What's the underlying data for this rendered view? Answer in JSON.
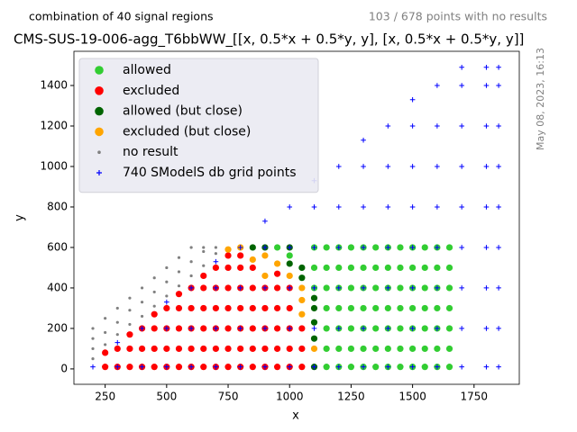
{
  "chart_data": {
    "type": "scatter",
    "title": "CMS-SUS-19-006-agg_T6bbWW_[[x, 0.5*x + 0.5*y, y], [x, 0.5*x + 0.5*y, y]]",
    "subtitle_left": "combination of 40 signal regions",
    "subtitle_right": "103 / 678 points with no results",
    "timestamp": "May 08, 2023, 16:13",
    "x_label": "x",
    "y_label": "y",
    "xlim": [
      123,
      1934
    ],
    "ylim": [
      -76,
      1569
    ],
    "xticks": [
      250,
      500,
      750,
      1000,
      1250,
      1500,
      1750
    ],
    "yticks": [
      0,
      200,
      400,
      600,
      800,
      1000,
      1200,
      1400
    ],
    "legend": "upper left",
    "series": [
      {
        "name": "allowed",
        "color": "#32cd32",
        "marker": "circle",
        "x": [
          950,
          1000,
          1100,
          1100,
          1100,
          1150,
          1150,
          1150,
          1150,
          1150,
          1150,
          1150,
          1200,
          1200,
          1200,
          1200,
          1200,
          1200,
          1200,
          1250,
          1250,
          1250,
          1250,
          1250,
          1250,
          1250,
          1300,
          1300,
          1300,
          1300,
          1300,
          1300,
          1300,
          1350,
          1350,
          1350,
          1350,
          1350,
          1350,
          1350,
          1400,
          1400,
          1400,
          1400,
          1400,
          1400,
          1400,
          1450,
          1450,
          1450,
          1450,
          1450,
          1450,
          1450,
          1500,
          1500,
          1500,
          1500,
          1500,
          1500,
          1500,
          1550,
          1550,
          1550,
          1550,
          1550,
          1550,
          1550,
          1600,
          1600,
          1600,
          1600,
          1600,
          1600,
          1600,
          1650,
          1650,
          1650,
          1650,
          1650,
          1650,
          1650
        ],
        "values": [
          600,
          560,
          400,
          500,
          600,
          10,
          100,
          200,
          300,
          400,
          500,
          600,
          10,
          100,
          200,
          300,
          400,
          500,
          600,
          10,
          100,
          200,
          300,
          400,
          500,
          600,
          10,
          100,
          200,
          300,
          400,
          500,
          600,
          10,
          100,
          200,
          300,
          400,
          500,
          600,
          10,
          100,
          200,
          300,
          400,
          500,
          600,
          10,
          100,
          200,
          300,
          400,
          500,
          600,
          10,
          100,
          200,
          300,
          400,
          500,
          600,
          10,
          100,
          200,
          300,
          400,
          500,
          600,
          10,
          100,
          200,
          300,
          400,
          500,
          600,
          10,
          100,
          200,
          300,
          400,
          500,
          600
        ]
      },
      {
        "name": "excluded",
        "color": "#ff0000",
        "marker": "circle",
        "x": [
          250,
          250,
          300,
          300,
          350,
          350,
          350,
          400,
          400,
          400,
          450,
          450,
          450,
          450,
          500,
          500,
          500,
          500,
          550,
          550,
          550,
          550,
          550,
          600,
          600,
          600,
          600,
          600,
          650,
          650,
          650,
          650,
          650,
          650,
          700,
          700,
          700,
          700,
          700,
          700,
          750,
          750,
          750,
          750,
          750,
          750,
          750,
          800,
          800,
          800,
          800,
          800,
          800,
          800,
          850,
          850,
          850,
          850,
          850,
          850,
          900,
          900,
          900,
          900,
          900,
          950,
          950,
          950,
          950,
          950,
          950,
          1000,
          1000,
          1000,
          1000,
          1000,
          1050,
          1050,
          1050
        ],
        "values": [
          10,
          80,
          10,
          100,
          10,
          100,
          170,
          10,
          100,
          200,
          10,
          100,
          200,
          270,
          10,
          100,
          200,
          300,
          10,
          100,
          200,
          300,
          370,
          10,
          100,
          200,
          300,
          400,
          10,
          100,
          200,
          300,
          400,
          460,
          10,
          100,
          200,
          300,
          400,
          500,
          10,
          100,
          200,
          300,
          400,
          500,
          560,
          10,
          100,
          200,
          300,
          400,
          500,
          560,
          10,
          100,
          200,
          300,
          400,
          500,
          10,
          100,
          200,
          300,
          400,
          10,
          100,
          200,
          300,
          400,
          470,
          10,
          100,
          200,
          300,
          400,
          10,
          100,
          200
        ]
      },
      {
        "name": "allowed (but close)",
        "color": "#006400",
        "marker": "circle",
        "x": [
          850,
          900,
          1000,
          1000,
          1050,
          1050,
          1100,
          1100,
          1100,
          1100,
          1100
        ],
        "values": [
          600,
          600,
          520,
          600,
          450,
          500,
          10,
          150,
          230,
          300,
          350
        ]
      },
      {
        "name": "excluded (but close)",
        "color": "#ffa500",
        "marker": "circle",
        "x": [
          750,
          800,
          850,
          900,
          900,
          950,
          1000,
          1050,
          1050,
          1050,
          1100
        ],
        "values": [
          590,
          600,
          540,
          460,
          560,
          520,
          460,
          270,
          340,
          400,
          100
        ]
      },
      {
        "name": "no result",
        "color": "#808080",
        "marker": "dot",
        "x": [
          200,
          200,
          200,
          200,
          250,
          250,
          250,
          300,
          300,
          300,
          350,
          350,
          350,
          400,
          400,
          400,
          450,
          450,
          450,
          500,
          500,
          500,
          550,
          550,
          550,
          600,
          600,
          600,
          650,
          650,
          650,
          700,
          700
        ],
        "values": [
          50,
          100,
          150,
          200,
          120,
          180,
          250,
          170,
          230,
          300,
          220,
          290,
          350,
          260,
          330,
          400,
          310,
          380,
          450,
          360,
          430,
          500,
          410,
          480,
          550,
          460,
          530,
          600,
          510,
          580,
          600,
          570,
          600
        ]
      },
      {
        "name": "740 SModelS db grid points",
        "color": "#0000ff",
        "marker": "plus",
        "x": [
          200,
          300,
          300,
          400,
          400,
          500,
          500,
          500,
          600,
          600,
          600,
          700,
          700,
          700,
          700,
          800,
          800,
          800,
          800,
          900,
          900,
          900,
          900,
          900,
          1000,
          1000,
          1000,
          1000,
          1000,
          1100,
          1100,
          1100,
          1100,
          1100,
          1100,
          1200,
          1200,
          1200,
          1200,
          1200,
          1200,
          1300,
          1300,
          1300,
          1300,
          1300,
          1300,
          1300,
          1400,
          1400,
          1400,
          1400,
          1400,
          1400,
          1400,
          1500,
          1500,
          1500,
          1500,
          1500,
          1500,
          1500,
          1500,
          1600,
          1600,
          1600,
          1600,
          1600,
          1600,
          1600,
          1600,
          1700,
          1700,
          1700,
          1700,
          1700,
          1700,
          1700,
          1700,
          1700,
          1800,
          1800,
          1800,
          1800,
          1800,
          1800,
          1800,
          1800,
          1800,
          1850,
          1850,
          1850,
          1850,
          1850,
          1850,
          1850,
          1850,
          1850
        ],
        "values": [
          10,
          10,
          130,
          10,
          200,
          10,
          200,
          330,
          10,
          200,
          400,
          10,
          200,
          400,
          530,
          10,
          200,
          400,
          600,
          10,
          200,
          400,
          600,
          730,
          10,
          200,
          400,
          600,
          800,
          10,
          200,
          400,
          600,
          800,
          930,
          10,
          200,
          400,
          600,
          800,
          1000,
          10,
          200,
          400,
          600,
          800,
          1000,
          1130,
          10,
          200,
          400,
          600,
          800,
          1000,
          1200,
          10,
          200,
          400,
          600,
          800,
          1000,
          1200,
          1330,
          10,
          200,
          400,
          600,
          800,
          1000,
          1200,
          1400,
          10,
          200,
          400,
          600,
          800,
          1000,
          1200,
          1400,
          1490,
          10,
          200,
          400,
          600,
          800,
          1000,
          1200,
          1400,
          1490,
          10,
          200,
          400,
          600,
          800,
          1000,
          1200,
          1400,
          1490
        ]
      }
    ]
  }
}
